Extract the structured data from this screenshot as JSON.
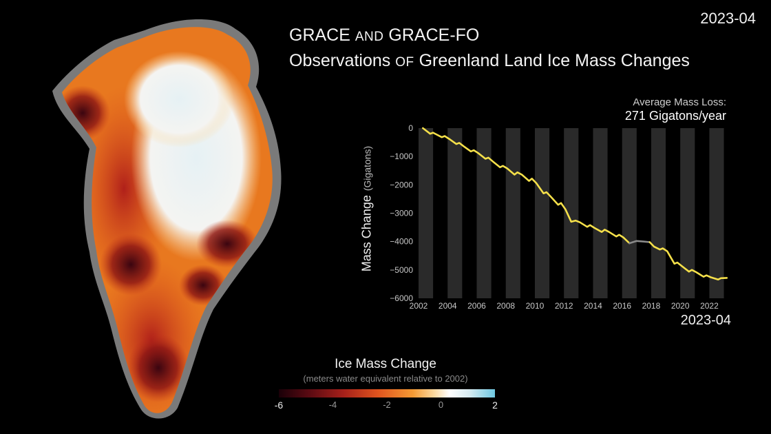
{
  "date_label": "2023-04",
  "title": {
    "line1_a": "GRACE ",
    "line1_b": "AND",
    "line1_c": " GRACE-FO",
    "line2_a": "Observations ",
    "line2_b": "OF",
    "line2_c": " Greenland Land Ice Mass Changes"
  },
  "average": {
    "label": "Average Mass Loss:",
    "value": "271 Gigatons/year"
  },
  "chart_data": {
    "type": "line",
    "ylabel": "Mass Change",
    "ylabel_unit": "(Gigatons)",
    "ylim": [
      -6000,
      0
    ],
    "yticks": [
      0,
      -1000,
      -2000,
      -3000,
      -4000,
      -5000,
      -6000
    ],
    "ytick_labels": [
      "0",
      "−1000",
      "−2000",
      "−3000",
      "−4000",
      "−5000",
      "−6000"
    ],
    "xlim": [
      2002,
      2023.4
    ],
    "xticks": [
      2002,
      2004,
      2006,
      2008,
      2010,
      2012,
      2014,
      2016,
      2018,
      2020,
      2022
    ],
    "xtick_labels": [
      "2002",
      "2004",
      "2006",
      "2008",
      "2010",
      "2012",
      "2014",
      "2016",
      "2018",
      "2020",
      "2022"
    ],
    "end_label": "2023-04",
    "series": [
      {
        "color": "#f5e04a",
        "x": [
          2002.3,
          2002.8,
          2003.0,
          2003.6,
          2003.8,
          2004.1,
          2004.6,
          2004.8,
          2005.1,
          2005.6,
          2005.8,
          2006.1,
          2006.6,
          2006.8,
          2007.1,
          2007.6,
          2007.8,
          2008.1,
          2008.6,
          2008.8,
          2009.1,
          2009.6,
          2009.8,
          2010.1,
          2010.6,
          2010.8,
          2011.1,
          2011.6,
          2011.8,
          2012.1,
          2012.5,
          2012.8,
          2013.1,
          2013.6,
          2013.8,
          2014.1,
          2014.6,
          2014.8,
          2015.1,
          2015.6,
          2015.8,
          2016.1,
          2016.5
        ],
        "values": [
          0,
          -200,
          -160,
          -320,
          -280,
          -380,
          -560,
          -520,
          -640,
          -820,
          -780,
          -880,
          -1080,
          -1040,
          -1170,
          -1380,
          -1330,
          -1420,
          -1640,
          -1560,
          -1640,
          -1860,
          -1780,
          -1940,
          -2300,
          -2260,
          -2420,
          -2700,
          -2640,
          -2860,
          -3300,
          -3260,
          -3320,
          -3480,
          -3420,
          -3520,
          -3660,
          -3580,
          -3660,
          -3820,
          -3760,
          -3860,
          -4060
        ]
      },
      {
        "color": "#8a8a8a",
        "x": [
          2016.5,
          2017.0,
          2017.5,
          2017.9
        ],
        "values": [
          -4060,
          -3980,
          -4000,
          -4020
        ]
      },
      {
        "color": "#f5e04a",
        "x": [
          2017.9,
          2018.2,
          2018.6,
          2018.8,
          2019.1,
          2019.6,
          2019.8,
          2020.1,
          2020.6,
          2020.8,
          2021.1,
          2021.6,
          2021.8,
          2022.1,
          2022.6,
          2022.8,
          2023.2
        ],
        "values": [
          -4020,
          -4180,
          -4280,
          -4240,
          -4340,
          -4780,
          -4740,
          -4860,
          -5060,
          -5000,
          -5080,
          -5240,
          -5190,
          -5260,
          -5340,
          -5290,
          -5280
        ]
      }
    ]
  },
  "colorbar": {
    "title": "Ice Mass Change",
    "subtitle": "(meters water equivalent relative to 2002)",
    "ticks": [
      "-6",
      "-4",
      "-2",
      "0",
      "2"
    ],
    "range": [
      -6,
      2
    ],
    "colors": [
      "#1a0008",
      "#a6201a",
      "#f49a34",
      "#ffffff",
      "#6ec8e2"
    ]
  }
}
